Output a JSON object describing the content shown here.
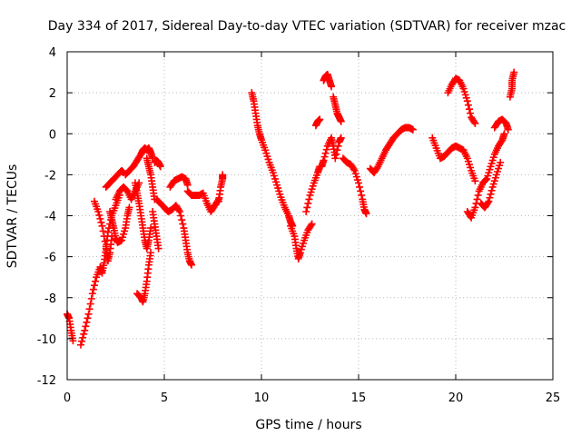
{
  "chart_data": {
    "type": "scatter",
    "title": "Day 334 of 2017, Sidereal Day-to-day VTEC variation (SDTVAR) for receiver mzac",
    "xlabel": "GPS time / hours",
    "ylabel": "SDTVAR / TECUs",
    "xlim": [
      0,
      25
    ],
    "ylim": [
      -12,
      4
    ],
    "xticks": [
      0,
      5,
      10,
      15,
      20,
      25
    ],
    "yticks": [
      -12,
      -10,
      -8,
      -6,
      -4,
      -2,
      0,
      2,
      4
    ],
    "grid": true,
    "marker": "+",
    "color": "#ff0000",
    "legend": "none",
    "series": [
      {
        "segments": [
          [
            [
              0.0,
              -8.8
            ],
            [
              0.1,
              -9.0
            ],
            [
              0.2,
              -9.6
            ],
            [
              0.3,
              -10.1
            ]
          ],
          [
            [
              0.7,
              -10.3
            ],
            [
              0.9,
              -9.6
            ],
            [
              1.1,
              -8.8
            ],
            [
              1.3,
              -7.8
            ],
            [
              1.5,
              -7.0
            ],
            [
              1.7,
              -6.5
            ],
            [
              1.8,
              -6.8
            ],
            [
              1.9,
              -6.3
            ],
            [
              2.0,
              -5.6
            ],
            [
              2.1,
              -4.8
            ],
            [
              2.3,
              -4.0
            ],
            [
              2.5,
              -3.5
            ],
            [
              2.7,
              -3.0
            ]
          ],
          [
            [
              1.4,
              -3.3
            ],
            [
              1.6,
              -3.8
            ],
            [
              1.8,
              -4.5
            ],
            [
              2.0,
              -5.5
            ],
            [
              2.1,
              -6.2
            ],
            [
              2.2,
              -5.8
            ],
            [
              2.3,
              -5.0
            ]
          ],
          [
            [
              2.0,
              -2.6
            ],
            [
              2.2,
              -2.4
            ],
            [
              2.4,
              -2.2
            ],
            [
              2.6,
              -2.0
            ],
            [
              2.8,
              -1.8
            ],
            [
              2.9,
              -1.9
            ]
          ],
          [
            [
              2.2,
              -3.8
            ],
            [
              2.3,
              -4.2
            ],
            [
              2.4,
              -4.6
            ],
            [
              2.5,
              -5.1
            ],
            [
              2.6,
              -5.3
            ],
            [
              2.8,
              -5.2
            ],
            [
              3.0,
              -4.6
            ],
            [
              3.1,
              -4.0
            ],
            [
              3.2,
              -3.6
            ]
          ],
          [
            [
              2.5,
              -3.2
            ],
            [
              2.7,
              -2.8
            ],
            [
              2.9,
              -2.6
            ],
            [
              3.1,
              -2.8
            ],
            [
              3.3,
              -3.2
            ],
            [
              3.5,
              -2.8
            ],
            [
              3.7,
              -2.4
            ]
          ],
          [
            [
              3.0,
              -2.0
            ],
            [
              3.2,
              -1.8
            ],
            [
              3.4,
              -1.6
            ],
            [
              3.6,
              -1.3
            ],
            [
              3.8,
              -1.0
            ],
            [
              3.9,
              -0.8
            ],
            [
              4.0,
              -0.7
            ],
            [
              4.1,
              -0.8
            ],
            [
              4.2,
              -0.7
            ],
            [
              4.3,
              -0.9
            ],
            [
              4.4,
              -1.2
            ]
          ],
          [
            [
              3.5,
              -2.4
            ],
            [
              3.6,
              -2.9
            ],
            [
              3.7,
              -3.4
            ],
            [
              3.8,
              -4.0
            ],
            [
              3.9,
              -4.6
            ],
            [
              4.0,
              -5.2
            ],
            [
              4.1,
              -5.6
            ],
            [
              4.2,
              -5.2
            ],
            [
              4.3,
              -4.6
            ]
          ],
          [
            [
              3.6,
              -7.8
            ],
            [
              3.8,
              -8.0
            ],
            [
              3.9,
              -8.2
            ],
            [
              4.0,
              -7.8
            ],
            [
              4.1,
              -7.2
            ],
            [
              4.2,
              -6.4
            ],
            [
              4.3,
              -5.8
            ]
          ],
          [
            [
              4.1,
              -1.2
            ],
            [
              4.2,
              -1.6
            ],
            [
              4.3,
              -2.0
            ],
            [
              4.4,
              -2.6
            ],
            [
              4.5,
              -3.2
            ]
          ],
          [
            [
              4.4,
              -3.8
            ],
            [
              4.5,
              -4.4
            ],
            [
              4.6,
              -5.0
            ],
            [
              4.7,
              -5.6
            ]
          ],
          [
            [
              4.5,
              -1.4
            ],
            [
              4.6,
              -1.3
            ],
            [
              4.7,
              -1.4
            ],
            [
              4.8,
              -1.6
            ]
          ],
          [
            [
              4.6,
              -3.2
            ],
            [
              4.8,
              -3.4
            ],
            [
              5.0,
              -3.6
            ],
            [
              5.2,
              -3.8
            ],
            [
              5.4,
              -3.7
            ],
            [
              5.6,
              -3.5
            ],
            [
              5.8,
              -3.8
            ],
            [
              6.0,
              -4.6
            ],
            [
              6.1,
              -5.2
            ],
            [
              6.2,
              -5.8
            ],
            [
              6.3,
              -6.2
            ],
            [
              6.4,
              -6.4
            ]
          ],
          [
            [
              5.3,
              -2.6
            ],
            [
              5.5,
              -2.3
            ],
            [
              5.7,
              -2.2
            ],
            [
              5.9,
              -2.1
            ],
            [
              6.1,
              -2.2
            ],
            [
              6.2,
              -2.5
            ]
          ],
          [
            [
              6.2,
              -2.8
            ],
            [
              6.4,
              -3.0
            ],
            [
              6.6,
              -3.0
            ],
            [
              6.8,
              -3.0
            ],
            [
              7.0,
              -2.9
            ],
            [
              7.2,
              -3.4
            ],
            [
              7.4,
              -3.8
            ],
            [
              7.6,
              -3.5
            ],
            [
              7.8,
              -3.2
            ]
          ],
          [
            [
              7.8,
              -3.3
            ],
            [
              7.9,
              -2.6
            ],
            [
              8.0,
              -2.2
            ],
            [
              8.0,
              -2.0
            ]
          ],
          [
            [
              9.5,
              2.0
            ],
            [
              9.6,
              1.6
            ],
            [
              9.7,
              1.0
            ],
            [
              9.8,
              0.4
            ],
            [
              9.9,
              0.0
            ],
            [
              10.0,
              -0.3
            ],
            [
              10.2,
              -0.8
            ],
            [
              10.4,
              -1.4
            ],
            [
              10.6,
              -1.9
            ],
            [
              10.8,
              -2.5
            ],
            [
              11.0,
              -3.1
            ],
            [
              11.2,
              -3.6
            ],
            [
              11.4,
              -4.0
            ],
            [
              11.5,
              -4.3
            ],
            [
              11.6,
              -4.5
            ]
          ],
          [
            [
              11.5,
              -4.5
            ],
            [
              11.7,
              -5.0
            ],
            [
              11.8,
              -5.6
            ],
            [
              11.9,
              -6.1
            ],
            [
              12.0,
              -5.8
            ],
            [
              12.2,
              -5.2
            ],
            [
              12.4,
              -4.7
            ],
            [
              12.6,
              -4.4
            ]
          ],
          [
            [
              12.3,
              -3.8
            ],
            [
              12.5,
              -3.0
            ],
            [
              12.7,
              -2.4
            ],
            [
              12.9,
              -1.9
            ],
            [
              13.0,
              -1.6
            ]
          ],
          [
            [
              12.8,
              0.4
            ],
            [
              12.9,
              0.6
            ],
            [
              13.0,
              0.7
            ]
          ],
          [
            [
              13.2,
              2.6
            ],
            [
              13.3,
              2.8
            ],
            [
              13.4,
              2.9
            ],
            [
              13.5,
              2.6
            ],
            [
              13.6,
              2.3
            ]
          ],
          [
            [
              13.1,
              -1.6
            ],
            [
              13.2,
              -1.3
            ],
            [
              13.4,
              -0.6
            ],
            [
              13.6,
              -0.2
            ],
            [
              13.7,
              -0.6
            ],
            [
              13.8,
              -1.2
            ],
            [
              14.0,
              -0.4
            ],
            [
              14.1,
              -0.2
            ]
          ],
          [
            [
              13.7,
              1.8
            ],
            [
              13.8,
              1.4
            ],
            [
              13.9,
              1.0
            ],
            [
              14.0,
              0.8
            ],
            [
              14.1,
              0.6
            ]
          ],
          [
            [
              14.2,
              -1.2
            ],
            [
              14.4,
              -1.4
            ],
            [
              14.6,
              -1.5
            ],
            [
              14.8,
              -1.8
            ],
            [
              15.0,
              -2.4
            ],
            [
              15.2,
              -3.2
            ],
            [
              15.3,
              -3.7
            ],
            [
              15.4,
              -3.9
            ]
          ],
          [
            [
              15.6,
              -1.7
            ],
            [
              15.8,
              -1.9
            ],
            [
              16.0,
              -1.6
            ],
            [
              16.2,
              -1.2
            ],
            [
              16.4,
              -0.8
            ],
            [
              16.6,
              -0.5
            ],
            [
              16.8,
              -0.2
            ],
            [
              17.0,
              0.0
            ],
            [
              17.2,
              0.2
            ],
            [
              17.4,
              0.3
            ],
            [
              17.6,
              0.3
            ],
            [
              17.8,
              0.2
            ]
          ],
          [
            [
              18.8,
              -0.2
            ],
            [
              19.0,
              -0.7
            ],
            [
              19.2,
              -1.2
            ],
            [
              19.4,
              -1.1
            ],
            [
              19.6,
              -0.9
            ],
            [
              19.8,
              -0.7
            ],
            [
              20.0,
              -0.6
            ],
            [
              20.2,
              -0.7
            ],
            [
              20.4,
              -0.8
            ],
            [
              20.6,
              -1.2
            ],
            [
              20.8,
              -1.8
            ],
            [
              21.0,
              -2.3
            ]
          ],
          [
            [
              19.6,
              2.0
            ],
            [
              19.8,
              2.4
            ],
            [
              20.0,
              2.7
            ],
            [
              20.2,
              2.6
            ],
            [
              20.4,
              2.2
            ],
            [
              20.6,
              1.6
            ],
            [
              20.8,
              0.8
            ],
            [
              21.0,
              0.5
            ]
          ],
          [
            [
              20.6,
              -3.8
            ],
            [
              20.8,
              -4.1
            ],
            [
              21.0,
              -3.6
            ],
            [
              21.2,
              -2.8
            ],
            [
              21.4,
              -2.4
            ],
            [
              21.6,
              -2.2
            ],
            [
              21.8,
              -1.6
            ],
            [
              22.0,
              -1.0
            ],
            [
              22.2,
              -0.6
            ],
            [
              22.4,
              -0.3
            ],
            [
              22.5,
              0.0
            ]
          ],
          [
            [
              21.3,
              -3.4
            ],
            [
              21.5,
              -3.6
            ],
            [
              21.7,
              -3.3
            ],
            [
              21.9,
              -2.6
            ],
            [
              22.1,
              -2.0
            ],
            [
              22.3,
              -1.4
            ]
          ],
          [
            [
              22.0,
              0.3
            ],
            [
              22.2,
              0.6
            ],
            [
              22.4,
              0.7
            ],
            [
              22.6,
              0.5
            ],
            [
              22.7,
              0.2
            ]
          ],
          [
            [
              22.8,
              1.8
            ],
            [
              22.9,
              2.2
            ],
            [
              22.9,
              2.6
            ],
            [
              23.0,
              3.0
            ]
          ]
        ]
      }
    ]
  }
}
